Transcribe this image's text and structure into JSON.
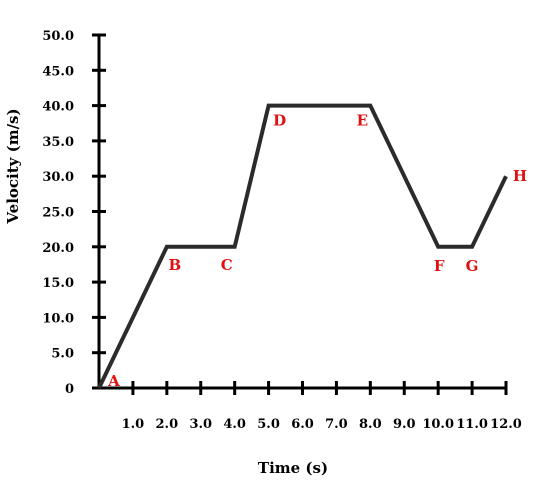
{
  "chart_data": {
    "type": "line",
    "title": "",
    "xlabel": "Time (s)",
    "ylabel": "Velocity (m/s)",
    "xlim": [
      0,
      12
    ],
    "ylim": [
      0,
      50
    ],
    "grid": false,
    "xticks": [
      {
        "value": 1,
        "label": "1.0"
      },
      {
        "value": 2,
        "label": "2.0"
      },
      {
        "value": 3,
        "label": "3.0"
      },
      {
        "value": 4,
        "label": "4.0"
      },
      {
        "value": 5,
        "label": "5.0"
      },
      {
        "value": 6,
        "label": "6.0"
      },
      {
        "value": 7,
        "label": "7.0"
      },
      {
        "value": 8,
        "label": "8.0"
      },
      {
        "value": 9,
        "label": "9.0"
      },
      {
        "value": 10,
        "label": "10.0"
      },
      {
        "value": 11,
        "label": "11.0"
      },
      {
        "value": 12,
        "label": "12.0"
      }
    ],
    "yticks": [
      {
        "value": 0,
        "label": "0"
      },
      {
        "value": 5,
        "label": "5.0"
      },
      {
        "value": 10,
        "label": "10.0"
      },
      {
        "value": 15,
        "label": "15.0"
      },
      {
        "value": 20,
        "label": "20.0"
      },
      {
        "value": 25,
        "label": "25.0"
      },
      {
        "value": 30,
        "label": "30.0"
      },
      {
        "value": 35,
        "label": "35.0"
      },
      {
        "value": 40,
        "label": "40.0"
      },
      {
        "value": 45,
        "label": "45.0"
      },
      {
        "value": 50,
        "label": "50.0"
      }
    ],
    "series": [
      {
        "x": [
          0,
          2,
          4,
          5,
          8,
          10,
          11,
          12
        ],
        "y": [
          0,
          20,
          20,
          40,
          40,
          20,
          20,
          30
        ],
        "point_labels": [
          "A",
          "B",
          "C",
          "D",
          "E",
          "F",
          "G",
          "H"
        ]
      }
    ],
    "colors": {
      "line": "#2b2b2b",
      "point_label": "#e01010",
      "axis": "#000000"
    }
  }
}
